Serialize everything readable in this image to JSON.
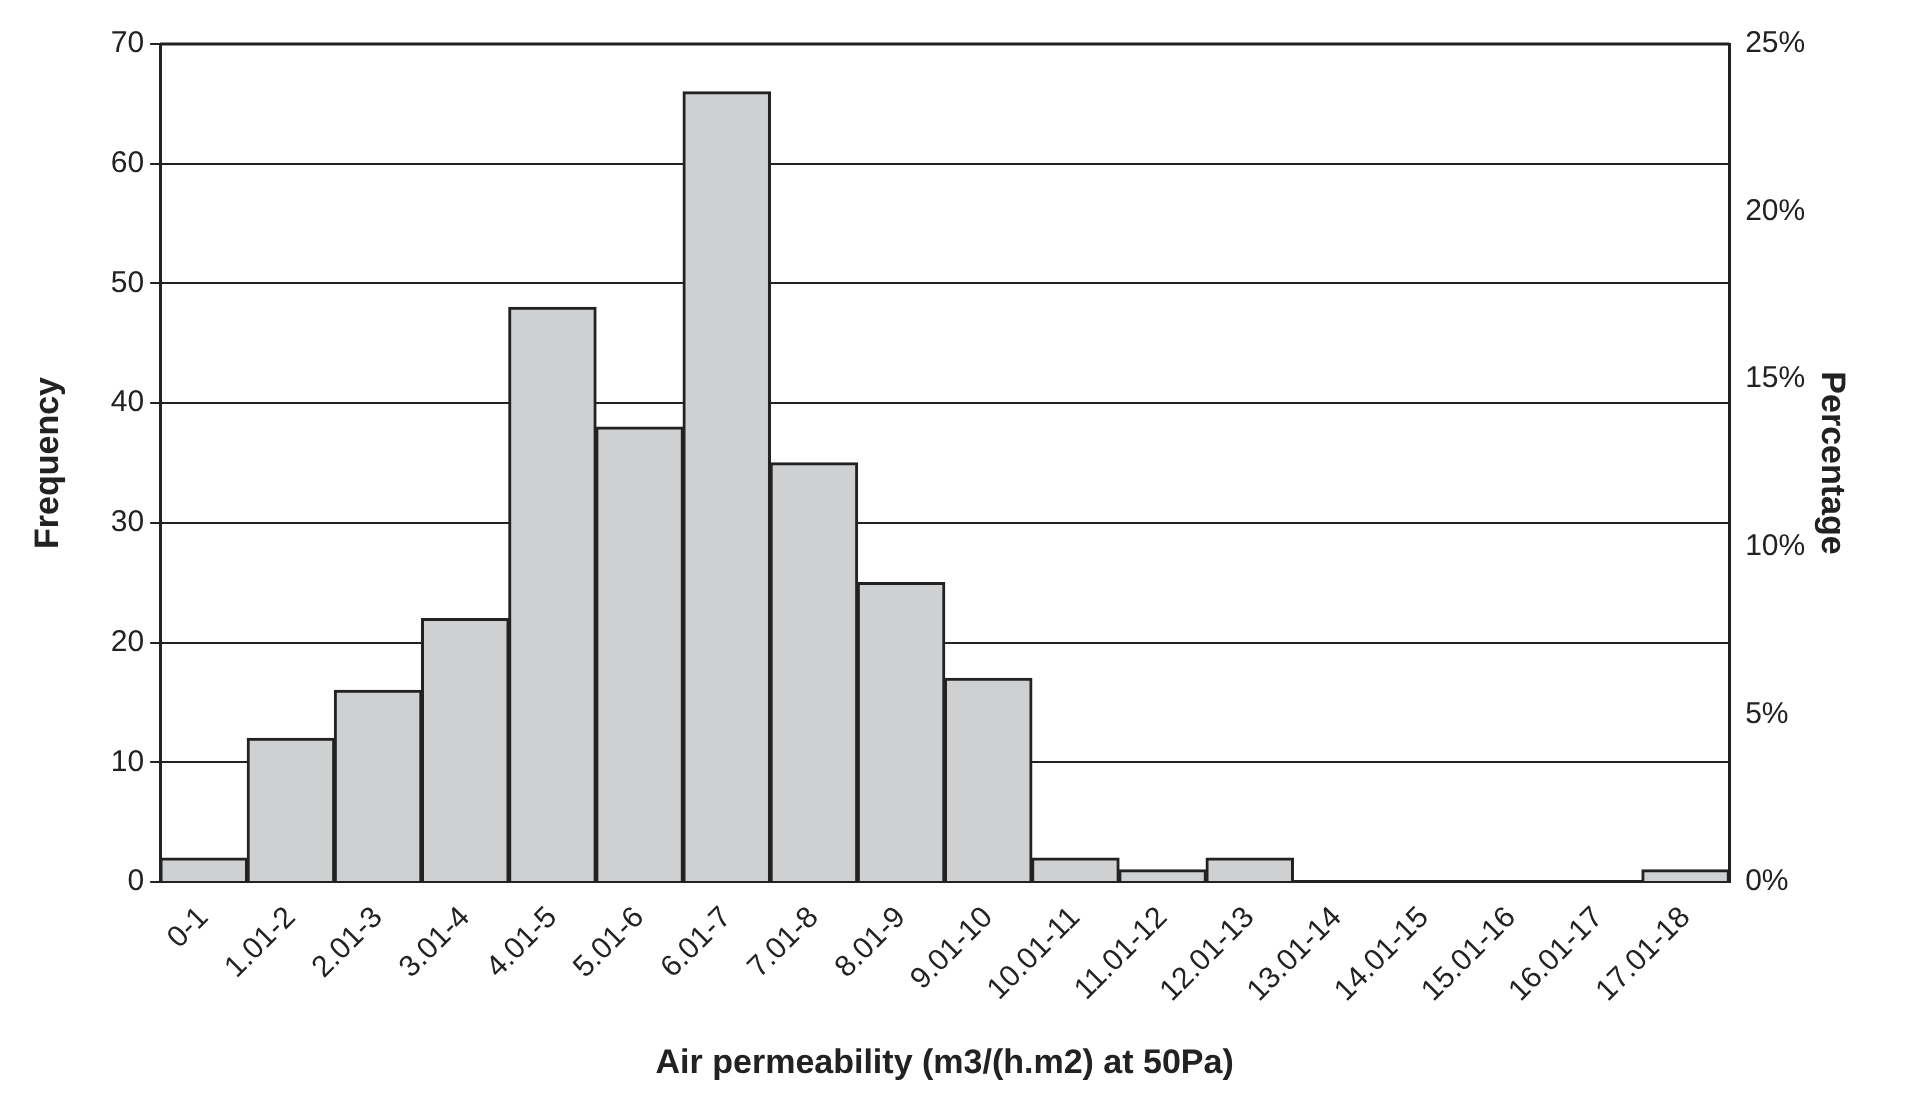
{
  "chart_data": {
    "type": "bar",
    "xlabel": "Air permeability (m3/(h.m2) at 50Pa)",
    "ylabel": "Frequency",
    "y2label": "Percentage",
    "categories": [
      "0-1",
      "1.01-2",
      "2.01-3",
      "3.01-4",
      "4.01-5",
      "5.01-6",
      "6.01-7",
      "7.01-8",
      "8.01-9",
      "9.01-10",
      "10.01-11",
      "11.01-12",
      "12.01-13",
      "13.01-14",
      "14.01-15",
      "15.01-16",
      "16.01-17",
      "17.01-18"
    ],
    "values": [
      2,
      12,
      16,
      22,
      48,
      38,
      66,
      35,
      25,
      17,
      2,
      1,
      2,
      0,
      0,
      0,
      0,
      1
    ],
    "color": "#cfd0d2",
    "ylim": [
      0,
      70
    ],
    "yticks": [
      0,
      10,
      20,
      30,
      40,
      50,
      60,
      70
    ],
    "y2lim": [
      0,
      25
    ],
    "y2ticks": [
      {
        "value": 0,
        "label": "0%"
      },
      {
        "value": 5,
        "label": "5%"
      },
      {
        "value": 10,
        "label": "10%"
      },
      {
        "value": 15,
        "label": "15%"
      },
      {
        "value": 20,
        "label": "20%"
      },
      {
        "value": 25,
        "label": "25%"
      }
    ],
    "grid": "y",
    "legend": false
  }
}
